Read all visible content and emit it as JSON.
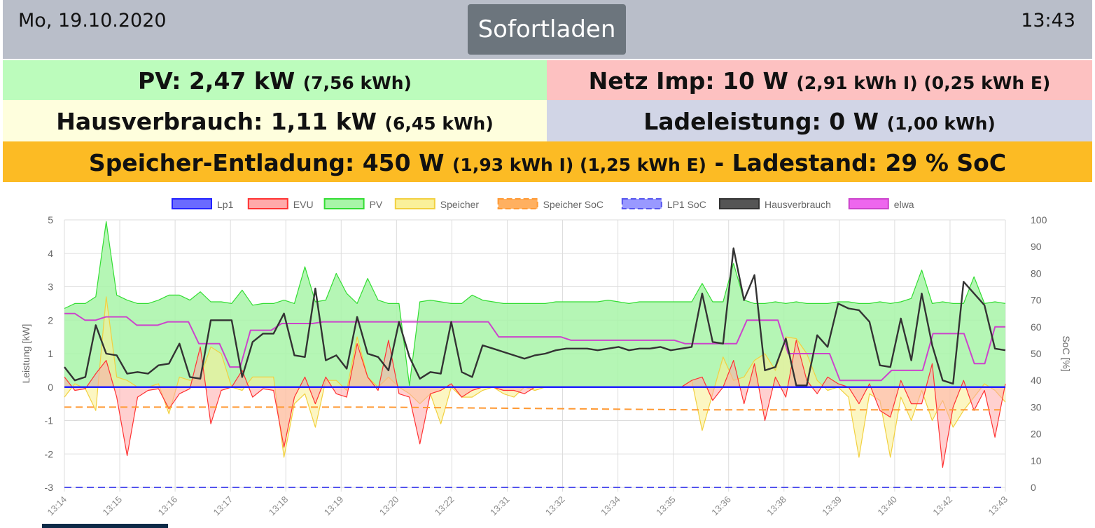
{
  "header": {
    "date": "Mo, 19.10.2020",
    "time": "13:43",
    "mode_button": "Sofortladen"
  },
  "tiles": {
    "pv": {
      "label": "PV: 2,47 kW",
      "detail": "(7,56 kWh)"
    },
    "netz": {
      "label": "Netz Imp: 10 W",
      "detail": "(2,91 kWh I) (0,25 kWh E)"
    },
    "haus": {
      "label": "Hausverbrauch: 1,11 kW",
      "detail": "(6,45 kWh)"
    },
    "lade": {
      "label": "Ladeleistung: 0 W",
      "detail": "(1,00 kWh)"
    },
    "speicher": {
      "label": "Speicher-Entladung: 450 W",
      "detail": "(1,93 kWh I) (1,25 kWh E)",
      "soc": "- Ladestand: 29 % SoC"
    }
  },
  "colors": {
    "pv_tile": "#bcfcbc",
    "netz_tile": "#fdc1c1",
    "haus_tile": "#fefedd",
    "lade_tile": "#d1d5e6",
    "speicher_tile": "#fcbb24",
    "header": "#b9bec9",
    "button": "#6c757d"
  },
  "chart_data": {
    "type": "line",
    "legend_position": "top",
    "grid": true,
    "ylabel": "Leistung [kW]",
    "y2label": "SoC [%]",
    "ylim": [
      -3,
      5
    ],
    "y2lim": [
      0,
      100
    ],
    "x_ticks": [
      "13:14",
      "13:15",
      "13:16",
      "13:17",
      "13:18",
      "13:19",
      "13:20",
      "13:22",
      "13:31",
      "13:32",
      "13:34",
      "13:35",
      "13:36",
      "13:38",
      "13:39",
      "13:40",
      "13:42",
      "13:43"
    ],
    "legend": [
      {
        "name": "Lp1",
        "color": "#2222ff",
        "fill": "#6a6aff",
        "dashed": false
      },
      {
        "name": "EVU",
        "color": "#ff3333",
        "fill": "#ffaaaa",
        "dashed": false
      },
      {
        "name": "PV",
        "color": "#33dd33",
        "fill": "#a8f5a8",
        "dashed": false
      },
      {
        "name": "Speicher",
        "color": "#f2d040",
        "fill": "#faf09a",
        "dashed": false
      },
      {
        "name": "Speicher SoC",
        "color": "#ff9933",
        "fill": "#ffb060",
        "dashed": true
      },
      {
        "name": "LP1 SoC",
        "color": "#5555ee",
        "fill": "#9999ff",
        "dashed": true
      },
      {
        "name": "Hausverbrauch",
        "color": "#333333",
        "fill": "#555555",
        "dashed": false
      },
      {
        "name": "elwa",
        "color": "#cc44cc",
        "fill": "#ee66ee",
        "dashed": false
      }
    ],
    "series": [
      {
        "name": "PV",
        "axis": "left",
        "values": [
          2.35,
          2.5,
          2.5,
          2.7,
          4.95,
          2.75,
          2.6,
          2.5,
          2.5,
          2.6,
          2.75,
          2.75,
          2.6,
          2.85,
          2.55,
          2.55,
          2.5,
          2.9,
          2.45,
          2.5,
          2.5,
          2.6,
          2.5,
          3.6,
          2.55,
          2.6,
          3.4,
          2.8,
          2.5,
          3.25,
          2.6,
          2.5,
          2.5,
          0.05,
          2.55,
          2.6,
          2.55,
          2.5,
          2.5,
          2.75,
          2.6,
          2.55,
          2.5,
          2.5,
          2.5,
          2.5,
          2.5,
          2.55,
          2.55,
          2.55,
          2.55,
          2.55,
          2.6,
          2.55,
          2.5,
          2.55,
          2.55,
          2.55,
          2.55,
          2.55,
          2.55,
          3.1,
          2.55,
          2.55,
          3.7,
          2.6,
          2.5,
          2.5,
          2.55,
          2.5,
          2.55,
          2.5,
          2.5,
          2.5,
          2.55,
          2.55,
          2.5,
          2.5,
          2.55,
          2.5,
          2.55,
          2.65,
          3.5,
          2.5,
          2.55,
          2.5,
          2.5,
          3.3,
          2.5,
          2.55,
          2.5
        ]
      },
      {
        "name": "Hausverbrauch",
        "axis": "left",
        "values": [
          0.6,
          0.2,
          0.3,
          1.85,
          1.0,
          0.95,
          0.4,
          0.45,
          0.4,
          0.65,
          0.7,
          1.3,
          0.3,
          0.25,
          2.0,
          2.0,
          2.0,
          0.3,
          1.35,
          1.6,
          1.6,
          2.2,
          0.95,
          0.9,
          2.95,
          0.8,
          0.95,
          0.55,
          2.1,
          1.0,
          0.9,
          0.5,
          1.95,
          0.9,
          0.25,
          0.45,
          0.4,
          1.95,
          0.45,
          0.3,
          1.25,
          1.15,
          1.05,
          0.95,
          0.85,
          0.95,
          1.0,
          1.1,
          1.15,
          1.15,
          1.15,
          1.1,
          1.15,
          1.2,
          1.1,
          1.15,
          1.15,
          1.2,
          1.1,
          1.15,
          1.2,
          2.8,
          1.35,
          1.3,
          4.15,
          2.6,
          3.35,
          0.5,
          0.6,
          1.45,
          0.05,
          0.05,
          1.55,
          1.2,
          2.5,
          2.35,
          2.3,
          1.95,
          0.65,
          0.6,
          2.05,
          0.8,
          2.8,
          1.25,
          0.2,
          0.1,
          3.15,
          2.8,
          2.45,
          1.15,
          1.1
        ]
      },
      {
        "name": "elwa",
        "axis": "left",
        "values": [
          2.2,
          2.2,
          2.0,
          2.0,
          2.1,
          2.1,
          2.1,
          1.85,
          1.85,
          1.85,
          1.95,
          1.95,
          1.95,
          1.3,
          1.3,
          1.3,
          0.6,
          0.6,
          1.7,
          1.7,
          1.7,
          1.9,
          1.9,
          1.9,
          1.9,
          1.95,
          1.95,
          1.95,
          1.95,
          1.95,
          1.95,
          1.95,
          1.95,
          1.95,
          1.95,
          1.95,
          1.95,
          1.95,
          1.95,
          1.95,
          1.95,
          1.95,
          1.5,
          1.5,
          1.5,
          1.5,
          1.5,
          1.5,
          1.5,
          1.4,
          1.4,
          1.4,
          1.4,
          1.4,
          1.4,
          1.4,
          1.4,
          1.4,
          1.4,
          1.4,
          1.3,
          1.3,
          1.3,
          1.3,
          1.3,
          1.3,
          2.0,
          2.0,
          2.0,
          2.0,
          1.0,
          1.0,
          1.0,
          1.0,
          1.0,
          0.2,
          0.2,
          0.2,
          0.2,
          0.2,
          0.5,
          0.5,
          0.5,
          0.5,
          1.6,
          1.6,
          1.6,
          1.6,
          0.7,
          0.7,
          1.8,
          1.8
        ]
      },
      {
        "name": "EVU",
        "axis": "left",
        "values": [
          0.3,
          -0.1,
          -0.05,
          0.4,
          0.8,
          -0.3,
          -2.05,
          -0.3,
          -0.1,
          -0.05,
          -0.65,
          -0.2,
          -0.05,
          1.2,
          -1.1,
          -0.1,
          0.0,
          0.5,
          -0.3,
          -0.05,
          -0.1,
          -1.8,
          -0.3,
          0.3,
          -0.5,
          0.3,
          -0.2,
          -0.3,
          1.3,
          0.3,
          -0.1,
          1.4,
          -0.2,
          -0.3,
          -1.7,
          -0.2,
          -0.1,
          0.1,
          -0.3,
          -0.1,
          0.0,
          0.0,
          -0.1,
          -0.1,
          -0.2,
          0.0,
          0.0,
          0.0,
          0.0,
          0.0,
          0.0,
          0.0,
          0.0,
          0.0,
          0.0,
          0.0,
          0.0,
          0.0,
          0.0,
          0.0,
          0.2,
          0.3,
          -0.4,
          0.0,
          0.8,
          -0.5,
          0.7,
          -1.0,
          0.3,
          -0.3,
          1.4,
          0.2,
          -0.2,
          0.3,
          0.1,
          0.0,
          -0.5,
          0.1,
          -0.7,
          -0.9,
          0.2,
          -0.5,
          -0.5,
          0.7,
          -2.4,
          -0.6,
          0.2,
          -0.7,
          -0.1,
          -1.5,
          0.1
        ]
      },
      {
        "name": "Speicher",
        "axis": "left",
        "values": [
          -0.3,
          0.1,
          -0.05,
          -0.7,
          2.7,
          0.3,
          0.2,
          0.0,
          0.0,
          0.1,
          -0.8,
          0.3,
          0.2,
          0.3,
          1.2,
          1.0,
          0.0,
          -0.1,
          0.3,
          0.3,
          0.3,
          -2.1,
          -0.5,
          -0.2,
          -1.2,
          0.2,
          0.2,
          -0.1,
          1.5,
          0.3,
          0.0,
          0.3,
          0.0,
          -0.2,
          -0.5,
          -0.2,
          -1.1,
          0.0,
          -0.3,
          -0.3,
          -0.1,
          0.0,
          -0.2,
          -0.3,
          0.0,
          -0.1,
          0.0,
          0.0,
          0.0,
          0.0,
          0.0,
          0.0,
          0.0,
          0.0,
          0.0,
          0.0,
          0.0,
          0.0,
          0.0,
          0.0,
          0.2,
          -1.3,
          -0.2,
          0.9,
          0.2,
          0.3,
          0.8,
          1.0,
          0.5,
          1.5,
          1.45,
          1.0,
          0.2,
          -0.1,
          0.0,
          -0.3,
          -2.1,
          -0.2,
          -0.4,
          -2.1,
          -0.3,
          -1.0,
          -0.1,
          -1.0,
          -0.4,
          -1.2,
          -0.7,
          -0.3,
          0.1,
          -0.1,
          -0.45
        ]
      },
      {
        "name": "Lp1",
        "axis": "left",
        "values": [
          0.0,
          0.0
        ]
      },
      {
        "name": "Speicher SoC",
        "axis": "right",
        "values": [
          30,
          30,
          29,
          29
        ]
      },
      {
        "name": "LP1 SoC",
        "axis": "right",
        "values": [
          0,
          0
        ]
      }
    ]
  }
}
